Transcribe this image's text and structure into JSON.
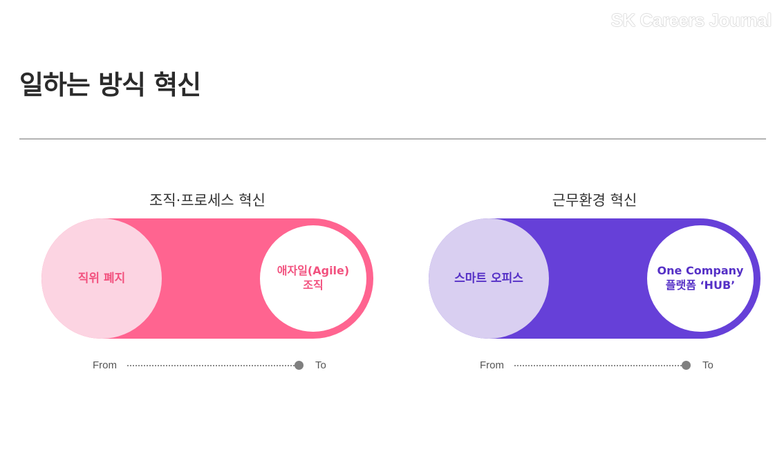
{
  "brand": "SK Careers Journal",
  "page_title": "일하는 방식 혁신",
  "panels": [
    {
      "title": "조직·프로세스 혁신",
      "from_text": "직위 폐지",
      "to_text": "애자일(Agile)\n조직",
      "axis_from": "From",
      "axis_to": "To",
      "colors": {
        "accent": "#ff6490",
        "from_bg": "#fcd4e2",
        "text": "#f2527f"
      }
    },
    {
      "title": "근무환경 혁신",
      "from_text": "스마트 오피스",
      "to_text": "One Company\n플랫폼 ‘HUB’",
      "axis_from": "From",
      "axis_to": "To",
      "colors": {
        "accent": "#6640d8",
        "from_bg": "#d9cff1",
        "text": "#5530c6"
      }
    }
  ]
}
